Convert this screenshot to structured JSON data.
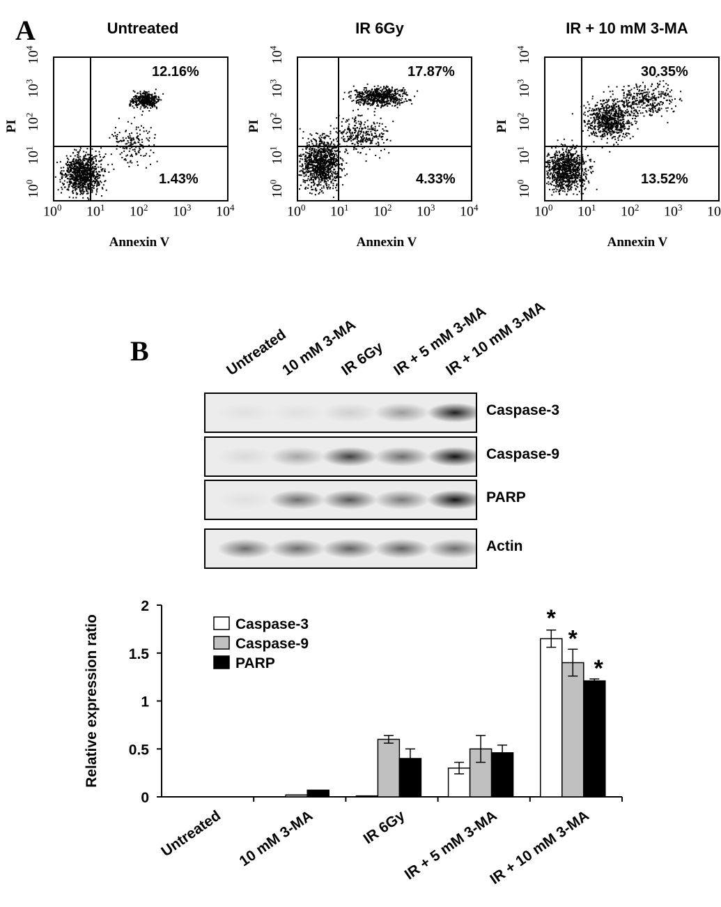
{
  "panel_a": {
    "letter": "A",
    "plots": [
      {
        "title": "Untreated",
        "upper_right_pct": "12.16%",
        "lower_right_pct": "1.43%",
        "x_label": "Annexin V",
        "y_label": "PI"
      },
      {
        "title": "IR 6Gy",
        "upper_right_pct": "17.87%",
        "lower_right_pct": "4.33%",
        "x_label": "Annexin V",
        "y_label": "PI"
      },
      {
        "title": "IR + 10 mM 3-MA",
        "upper_right_pct": "30.35%",
        "lower_right_pct": "13.52%",
        "x_label": "Annexin V",
        "y_label": "PI"
      }
    ],
    "ticks": [
      "0",
      "1",
      "2",
      "3",
      "4"
    ],
    "tick_base": "10"
  },
  "panel_b": {
    "letter": "B",
    "lanes": [
      "Untreated",
      "10 mM 3-MA",
      "IR 6Gy",
      "IR + 5 mM 3-MA",
      "IR + 10 mM 3-MA"
    ],
    "blots": [
      {
        "label": "Caspase-3",
        "intensity": [
          0.05,
          0.05,
          0.12,
          0.35,
          0.9
        ]
      },
      {
        "label": "Caspase-9",
        "intensity": [
          0.08,
          0.3,
          0.75,
          0.55,
          0.95
        ]
      },
      {
        "label": "PARP",
        "intensity": [
          0.05,
          0.55,
          0.65,
          0.5,
          0.95
        ]
      },
      {
        "label": "Actin",
        "intensity": [
          0.55,
          0.55,
          0.6,
          0.6,
          0.55
        ]
      }
    ]
  },
  "chart_data": {
    "type": "bar",
    "categories": [
      "Untreated",
      "10 mM 3-MA",
      "IR 6Gy",
      "IR + 5 mM 3-MA",
      "IR + 10 mM 3-MA"
    ],
    "series": [
      {
        "name": "Caspase-3",
        "color": "#ffffff",
        "values": [
          0,
          0,
          0.01,
          0.3,
          1.65
        ],
        "errors": [
          0,
          0,
          0,
          0.06,
          0.09
        ]
      },
      {
        "name": "Caspase-9",
        "color": "#c0c0c0",
        "values": [
          0,
          0.02,
          0.6,
          0.5,
          1.4
        ],
        "errors": [
          0,
          0,
          0.04,
          0.14,
          0.14
        ]
      },
      {
        "name": "PARP",
        "color": "#000000",
        "values": [
          0,
          0.07,
          0.4,
          0.46,
          1.21
        ],
        "errors": [
          0,
          0,
          0.1,
          0.08,
          0.02
        ]
      }
    ],
    "significance": [
      {
        "category": "IR + 10 mM 3-MA",
        "marker": "*"
      }
    ],
    "ylabel": "Relative expression ratio",
    "xlabel": "",
    "ylim": [
      0,
      2
    ],
    "yticks": [
      "0",
      "0.5",
      "1",
      "1.5",
      "2"
    ],
    "legend_position": "top-left"
  }
}
